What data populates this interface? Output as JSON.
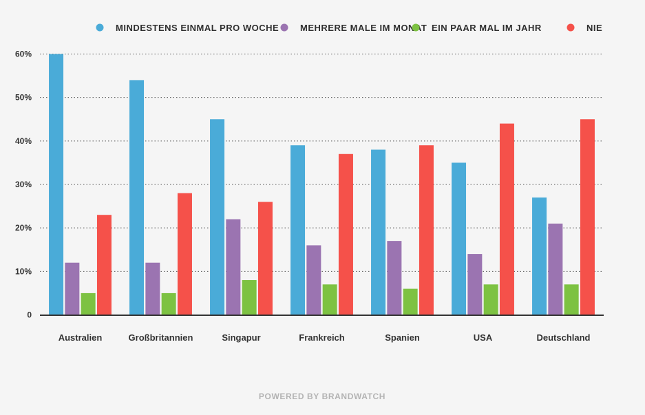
{
  "chart_data": {
    "type": "bar",
    "categories": [
      "Australien",
      "Großbritannien",
      "Singapur",
      "Frankreich",
      "Spanien",
      "USA",
      "Deutschland"
    ],
    "series": [
      {
        "name": "MINDESTENS EINMAL PRO WOCHE",
        "color": "#4aabd8",
        "values": [
          60,
          54,
          45,
          39,
          38,
          35,
          27
        ]
      },
      {
        "name": "MEHRERE MALE IM MONAT",
        "color": "#9b74b1",
        "values": [
          12,
          12,
          22,
          16,
          17,
          14,
          21
        ]
      },
      {
        "name": "EIN PAAR MAL IM JAHR",
        "color": "#7dc242",
        "values": [
          5,
          5,
          8,
          7,
          6,
          7,
          7
        ]
      },
      {
        "name": "NIE",
        "color": "#f5514a",
        "values": [
          23,
          28,
          26,
          37,
          39,
          44,
          45
        ]
      }
    ],
    "yticks": [
      {
        "value": 0,
        "label": "0"
      },
      {
        "value": 10,
        "label": "10%"
      },
      {
        "value": 20,
        "label": "20%"
      },
      {
        "value": 30,
        "label": "30%"
      },
      {
        "value": 40,
        "label": "40%"
      },
      {
        "value": 50,
        "label": "50%"
      },
      {
        "value": 60,
        "label": "60%"
      }
    ],
    "ylim": [
      0,
      60
    ],
    "grid": true,
    "legend_position": "top-right"
  },
  "footer": {
    "text": "POWERED BY BRANDWATCH"
  }
}
